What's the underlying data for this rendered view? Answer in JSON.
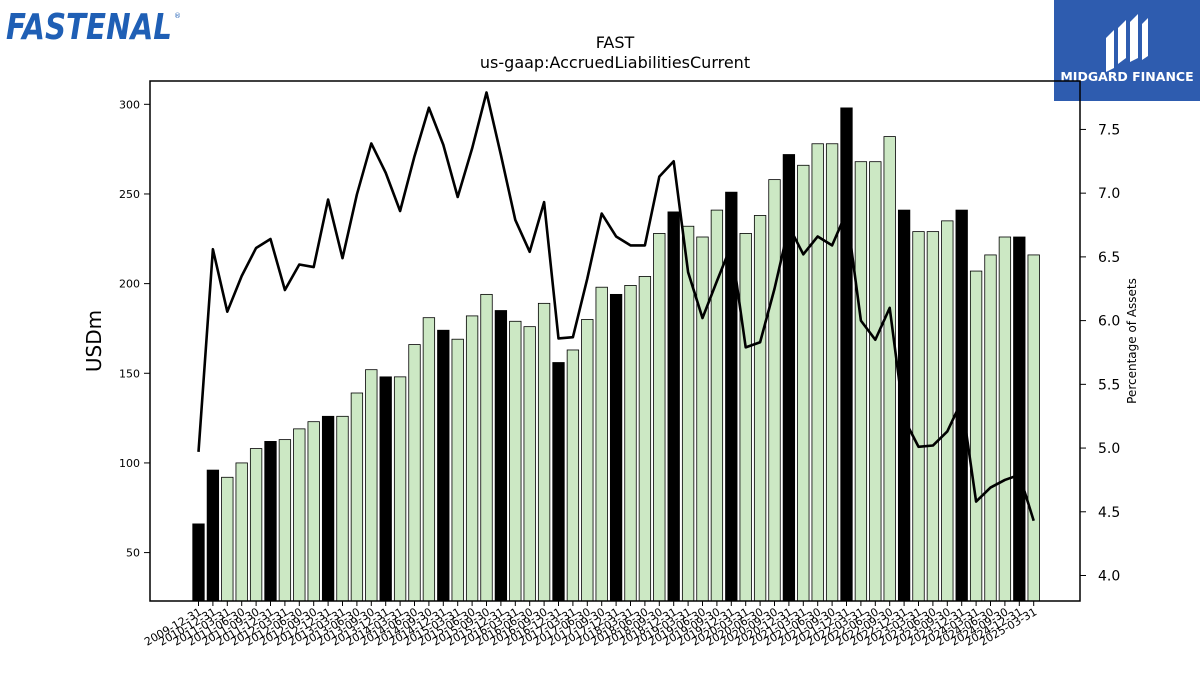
{
  "brand_left": {
    "name": "FASTENAL",
    "color": "#1f5fb5"
  },
  "brand_right": {
    "name": "MIDGARD FINANCE",
    "color": "#2e5caf"
  },
  "chart_data": {
    "type": "bar",
    "title": "FAST",
    "subtitle": "us-gaap:AccruedLiabilitiesCurrent",
    "ylabel": "USDm",
    "y2label": "Percentage of Assets",
    "ylim": [
      23,
      313
    ],
    "y2lim": [
      3.8,
      7.88
    ],
    "yticks": [
      50,
      100,
      150,
      200,
      250,
      300
    ],
    "y2ticks": [
      4.0,
      4.5,
      5.0,
      5.5,
      6.0,
      6.5,
      7.0,
      7.5
    ],
    "grid": false,
    "categories": [
      "2009-12-31",
      "2010-12-31",
      "2011-03-31",
      "2011-06-30",
      "2011-09-30",
      "2011-12-31",
      "2012-03-31",
      "2012-06-30",
      "2012-09-30",
      "2012-12-31",
      "2013-03-31",
      "2013-06-30",
      "2013-09-30",
      "2013-12-31",
      "2014-03-31",
      "2014-06-30",
      "2014-09-30",
      "2014-12-31",
      "2015-03-31",
      "2015-06-30",
      "2015-09-30",
      "2015-12-31",
      "2016-03-31",
      "2016-06-30",
      "2016-09-30",
      "2016-12-31",
      "2017-03-31",
      "2017-06-30",
      "2017-09-30",
      "2017-12-31",
      "2018-03-31",
      "2018-06-30",
      "2018-09-30",
      "2018-12-31",
      "2019-03-31",
      "2019-06-30",
      "2019-09-30",
      "2019-12-31",
      "2020-03-31",
      "2020-06-30",
      "2020-09-30",
      "2020-12-31",
      "2021-03-31",
      "2021-06-30",
      "2021-09-30",
      "2021-12-31",
      "2022-03-31",
      "2022-06-30",
      "2022-09-30",
      "2022-12-31",
      "2023-03-31",
      "2023-06-30",
      "2023-09-30",
      "2023-12-31",
      "2024-03-31",
      "2024-06-30",
      "2024-09-30",
      "2024-12-31",
      "2025-03-31"
    ],
    "series": [
      {
        "kind": "bar",
        "values": [
          66,
          96,
          92,
          100,
          108,
          112,
          113,
          119,
          123,
          126,
          126,
          139,
          152,
          148,
          148,
          166,
          181,
          174,
          169,
          182,
          194,
          185,
          179,
          176,
          189,
          156,
          163,
          180,
          198,
          194,
          199,
          204,
          228,
          240,
          232,
          226,
          241,
          251,
          228,
          238,
          258,
          272,
          266,
          278,
          278,
          298,
          268,
          268,
          282,
          241,
          229,
          229,
          235,
          241,
          207,
          216,
          226,
          226,
          216
        ],
        "year_end": [
          true,
          true,
          false,
          false,
          false,
          true,
          false,
          false,
          false,
          true,
          false,
          false,
          false,
          true,
          false,
          false,
          false,
          true,
          false,
          false,
          false,
          true,
          false,
          false,
          false,
          true,
          false,
          false,
          false,
          true,
          false,
          false,
          false,
          true,
          false,
          false,
          false,
          true,
          false,
          false,
          false,
          true,
          false,
          false,
          false,
          true,
          false,
          false,
          false,
          true,
          false,
          false,
          false,
          true,
          false,
          false,
          false,
          true,
          false
        ],
        "year_end_color": "#000000",
        "quarter_color": "#cce8c4"
      },
      {
        "kind": "line",
        "axis": "right",
        "color": "#000000",
        "values": [
          4.97,
          6.56,
          6.07,
          6.35,
          6.57,
          6.64,
          6.24,
          6.44,
          6.42,
          6.95,
          6.49,
          6.99,
          7.39,
          7.16,
          6.86,
          7.29,
          7.67,
          7.38,
          6.97,
          7.35,
          7.79,
          7.3,
          6.79,
          6.54,
          6.93,
          5.86,
          5.87,
          6.33,
          6.84,
          6.66,
          6.59,
          6.59,
          7.13,
          7.25,
          6.38,
          6.02,
          6.31,
          6.59,
          5.79,
          5.83,
          6.25,
          6.74,
          6.52,
          6.66,
          6.59,
          6.85,
          6.0,
          5.85,
          6.1,
          5.23,
          5.01,
          5.02,
          5.13,
          5.37,
          4.58,
          4.69,
          4.75,
          4.79,
          4.43
        ]
      }
    ]
  }
}
